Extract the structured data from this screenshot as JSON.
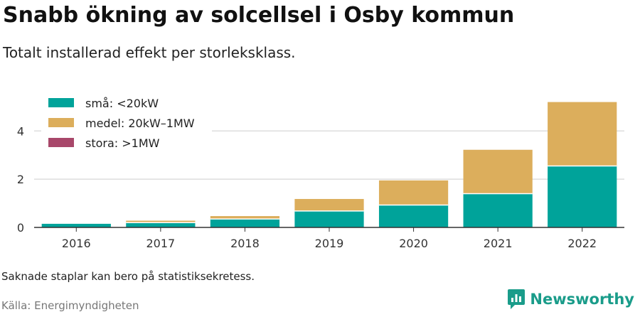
{
  "title": "Snabb ökning av solcellsel i Osby kommun",
  "subtitle": "Totalt installerad effekt per storleksklass.",
  "footnote": "Saknade staplar kan bero på statistiksekretess.",
  "source": "Källa: Energimyndigheten",
  "brand": {
    "name": "Newsworthy",
    "icon": "newsworthy-logo-icon",
    "color": "#1a9c8a"
  },
  "chart_data": {
    "type": "bar",
    "stacked": true,
    "categories": [
      "2016",
      "2017",
      "2018",
      "2019",
      "2020",
      "2021",
      "2022"
    ],
    "series": [
      {
        "name": "små: <20kW",
        "color": "#00a39a",
        "values": [
          0.15,
          0.2,
          0.35,
          0.68,
          0.93,
          1.4,
          2.55
        ]
      },
      {
        "name": "medel: 20kW–1MW",
        "color": "#dcae5c",
        "values": [
          0.0,
          0.08,
          0.12,
          0.5,
          1.02,
          1.82,
          2.65
        ]
      },
      {
        "name": "stora: >1MW",
        "color": "#a8476a",
        "values": [
          0,
          0,
          0,
          0,
          0,
          0,
          0
        ]
      }
    ],
    "y_ticks": [
      "0",
      "2",
      "4"
    ],
    "ylim": [
      0,
      5.6
    ],
    "grid": true,
    "legend_position": "top-left"
  }
}
